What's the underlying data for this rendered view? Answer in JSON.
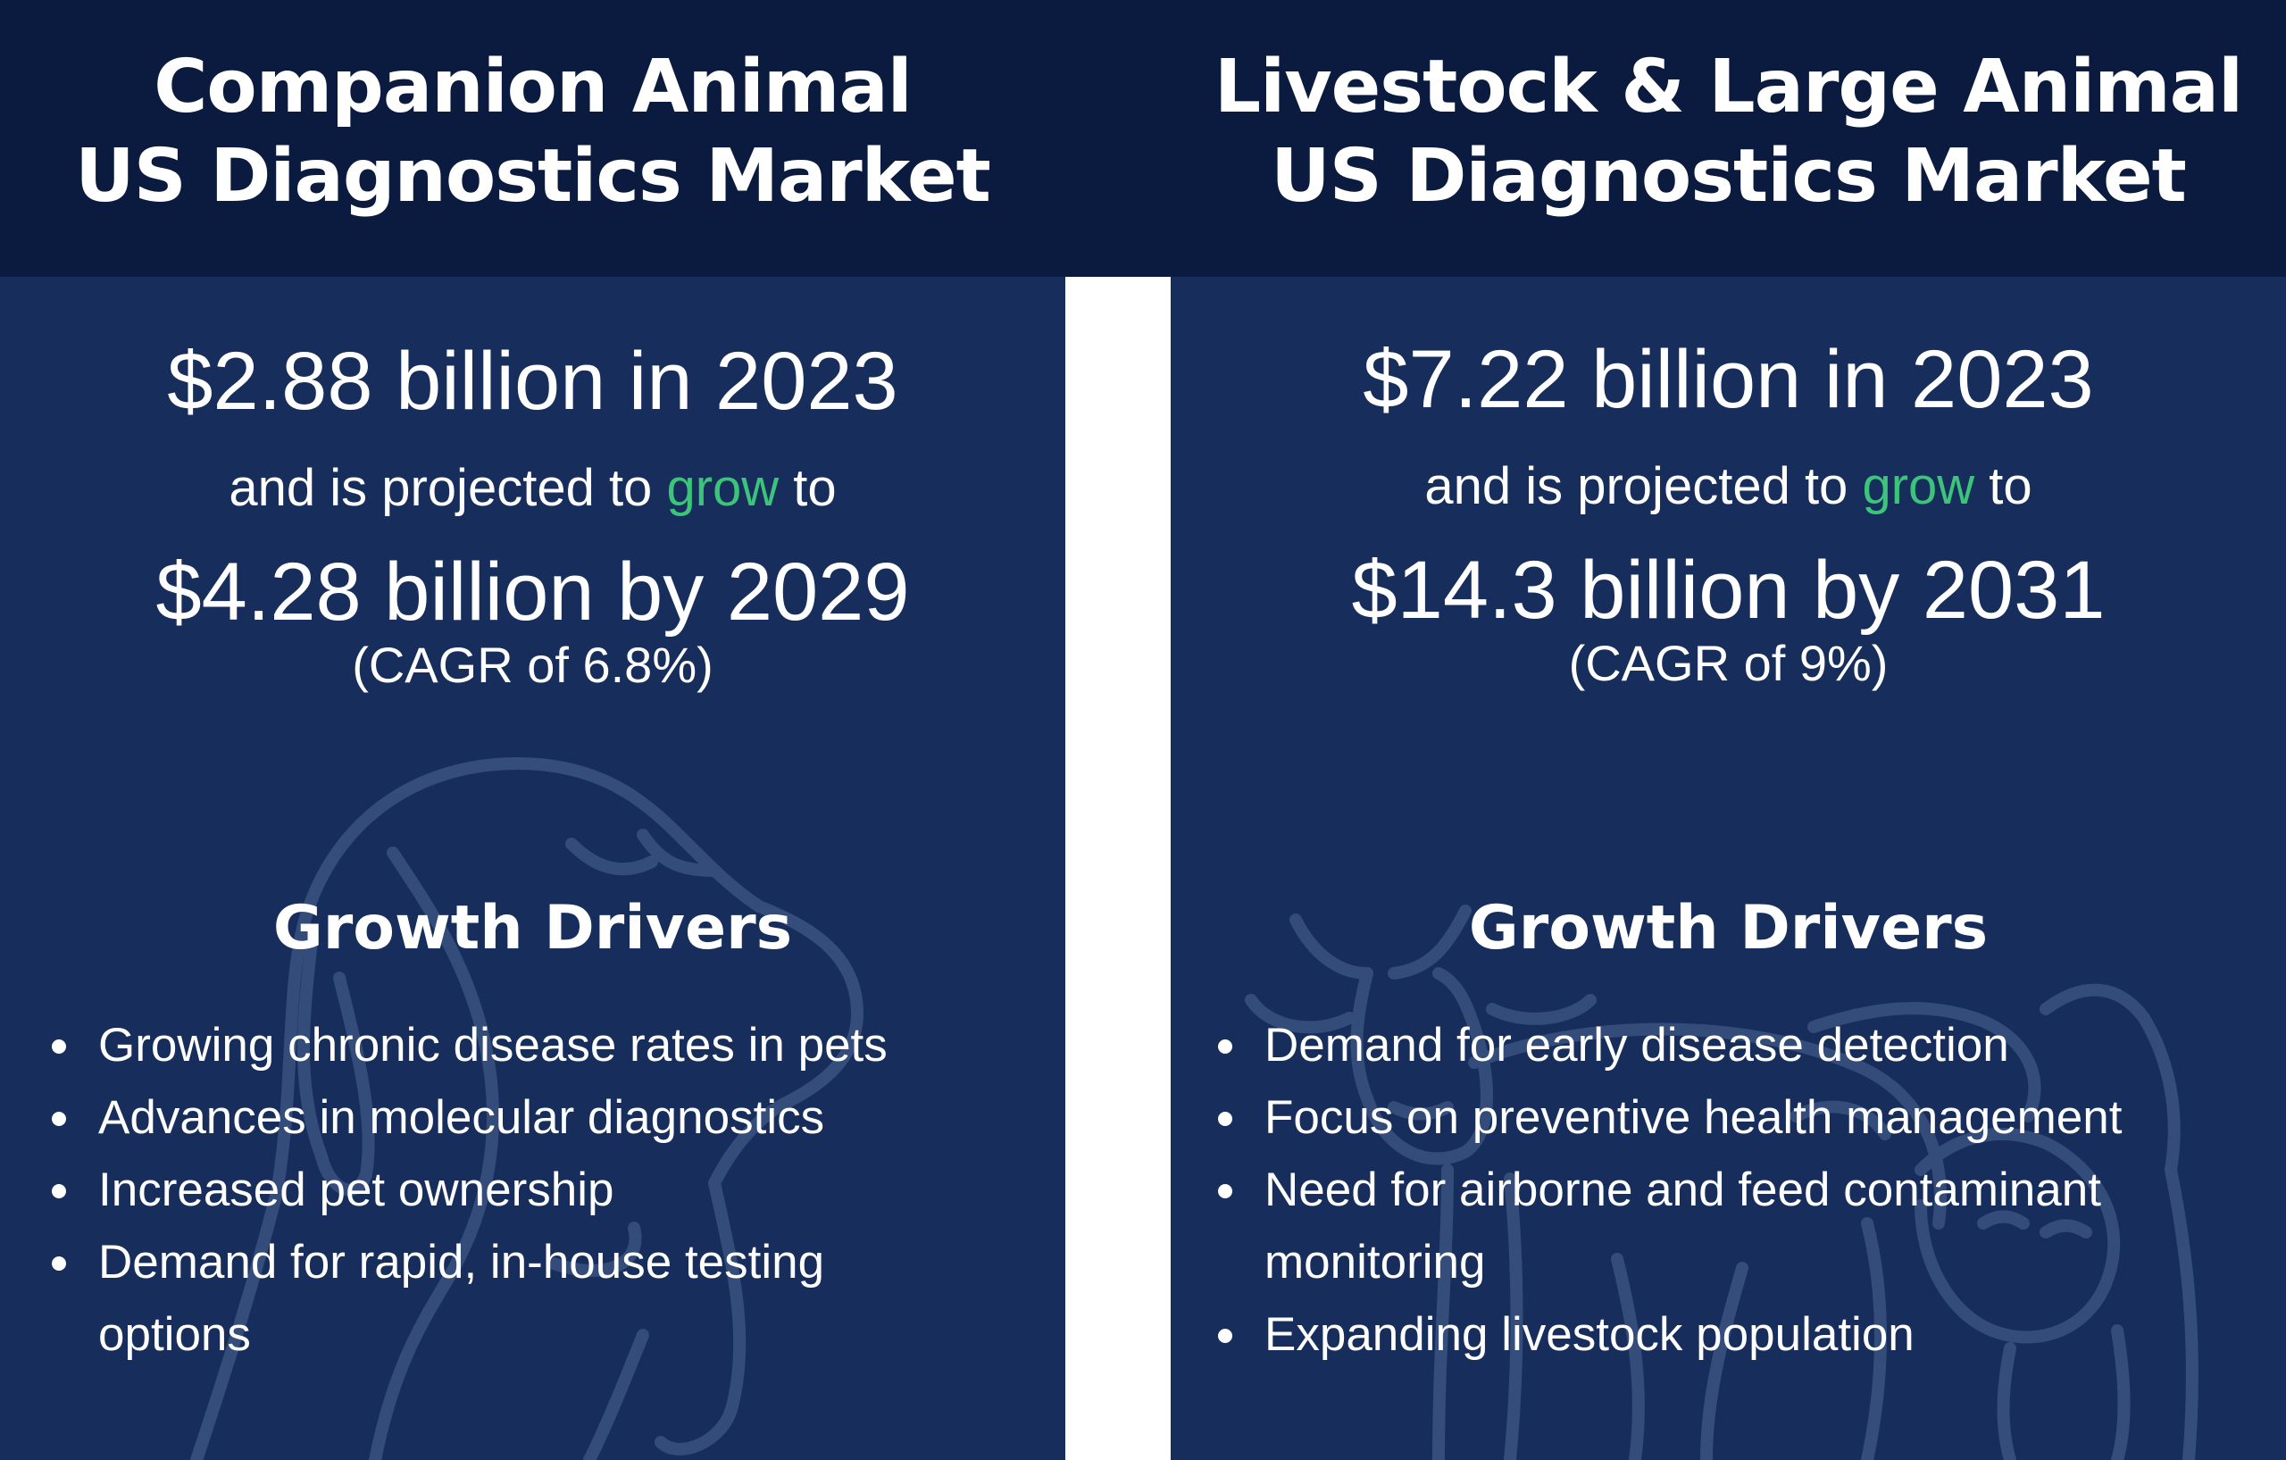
{
  "companion": {
    "title_line1": "Companion Animal",
    "title_line2": "US Diagnostics Market",
    "current_value": "$2.88 billion in 2023",
    "projection_prefix": "and is projected to",
    "projection_highlight": "grow",
    "projection_suffix": "to",
    "future_value": "$4.28 billion by 2029",
    "cagr": "(CAGR of 6.8%)",
    "drivers_title": "Growth Drivers",
    "drivers": [
      "Growing chronic disease rates in pets",
      "Advances in molecular diagnostics",
      "Increased pet ownership",
      "Demand for rapid, in-house testing options"
    ],
    "watermark_icon": "dog-head-icon"
  },
  "livestock": {
    "title_line1": "Livestock & Large Animal",
    "title_line2": "US Diagnostics Market",
    "current_value": "$7.22 billion in 2023",
    "projection_prefix": "and is projected to",
    "projection_highlight": "grow",
    "projection_suffix": "to",
    "future_value": "$14.3 billion by 2031",
    "cagr": "(CAGR of 9%)",
    "drivers_title": "Growth Drivers",
    "drivers": [
      "Demand for early disease detection",
      "Focus on preventive health management",
      "Need for airborne and feed contaminant monitoring",
      "Expanding livestock population"
    ],
    "watermark_icon": "cow-pig-icon"
  },
  "colors": {
    "header": "#0b1b3f",
    "panel": "#172e5c",
    "divider": "#ffffff",
    "accent_green": "#3cc47a"
  }
}
